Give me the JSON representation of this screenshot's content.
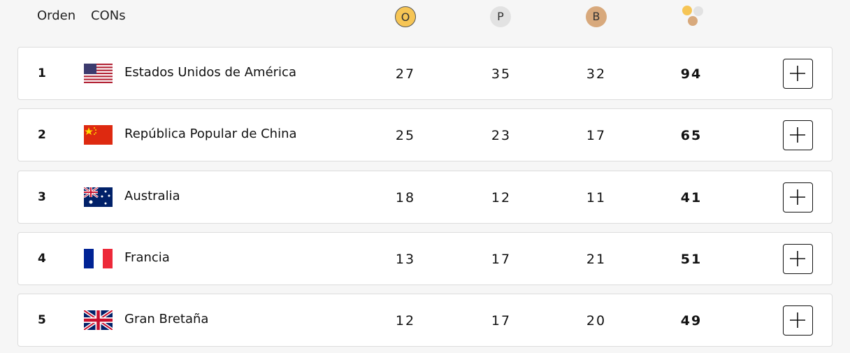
{
  "header": {
    "rank": "Orden",
    "country": "CONs",
    "gold": "O",
    "silver": "P",
    "bronze": "B"
  },
  "table": {
    "rows": [
      {
        "rank": 1,
        "country": "Estados Unidos de América",
        "gold": 27,
        "silver": 35,
        "bronze": 32,
        "total": 94
      },
      {
        "rank": 2,
        "country": "República Popular de China",
        "gold": 25,
        "silver": 23,
        "bronze": 17,
        "total": 65
      },
      {
        "rank": 3,
        "country": "Australia",
        "gold": 18,
        "silver": 12,
        "bronze": 11,
        "total": 41
      },
      {
        "rank": 4,
        "country": "Francia",
        "gold": 13,
        "silver": 17,
        "bronze": 21,
        "total": 51
      },
      {
        "rank": 5,
        "country": "Gran Bretaña",
        "gold": 12,
        "silver": 17,
        "bronze": 20,
        "total": 49
      }
    ]
  }
}
